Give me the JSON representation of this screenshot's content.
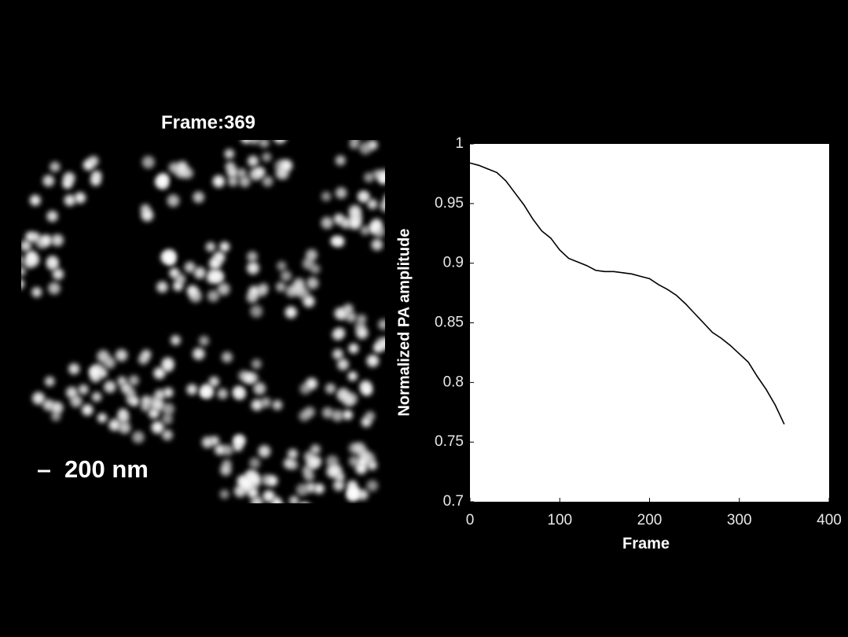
{
  "image": {
    "title": "Frame:369",
    "scale_bar": "200 nm"
  },
  "chart_data": {
    "type": "line",
    "xlabel": "Frame",
    "ylabel": "Normalized PA amplitude",
    "xlim": [
      0,
      400
    ],
    "xticks": [
      0,
      100,
      200,
      300,
      400
    ],
    "ylim": [
      0.7,
      1
    ],
    "yticks": [
      0.7,
      0.75,
      0.8,
      0.85,
      0.9,
      0.95,
      1
    ],
    "series": [
      {
        "color": "#000000",
        "x": [
          0,
          10,
          20,
          30,
          40,
          50,
          60,
          70,
          80,
          90,
          100,
          110,
          120,
          130,
          140,
          150,
          160,
          170,
          180,
          190,
          200,
          210,
          220,
          230,
          240,
          250,
          260,
          270,
          280,
          290,
          300,
          310,
          320,
          330,
          340,
          350
        ],
        "values": [
          0.984,
          0.982,
          0.979,
          0.976,
          0.969,
          0.959,
          0.949,
          0.937,
          0.927,
          0.921,
          0.911,
          0.904,
          0.901,
          0.898,
          0.894,
          0.893,
          0.893,
          0.892,
          0.891,
          0.889,
          0.887,
          0.882,
          0.878,
          0.873,
          0.866,
          0.858,
          0.85,
          0.842,
          0.837,
          0.831,
          0.824,
          0.817,
          0.805,
          0.794,
          0.781,
          0.765
        ]
      }
    ]
  }
}
